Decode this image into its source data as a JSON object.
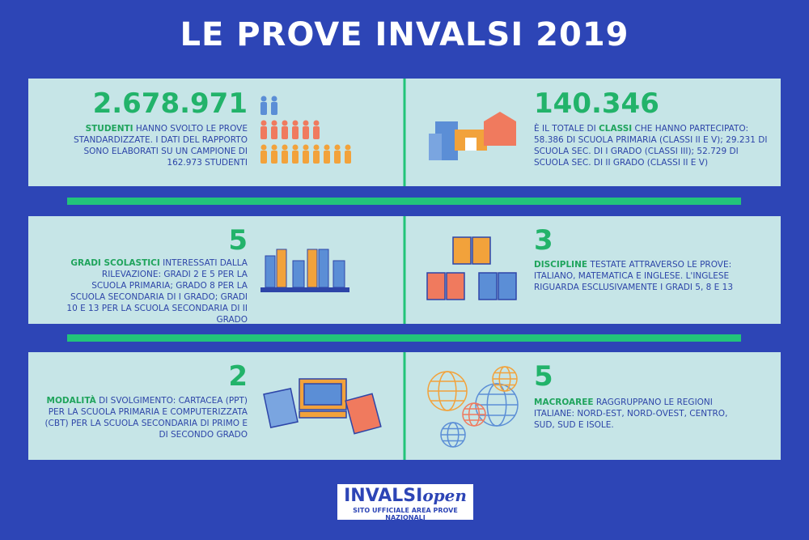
{
  "title": "LE PROVE INVALSI 2019",
  "panels": [
    {
      "number": "2.678.971",
      "highlight": "STUDENTI",
      "text": "HANNO SVOLTO LE PROVE STANDARDIZZATE. I DATI DEL RAPPORTO SONO ELABORATI SU UN CAMPIONE DI 162.973 STUDENTI"
    },
    {
      "number": "140.346",
      "prefix": "È IL TOTALE DI",
      "highlight": "CLASSI",
      "text": "CHE HANNO PARTECIPATO: 58.386 DI SCUOLA PRIMARIA (CLASSI II E V); 29.231 DI SCUOLA SEC. DI I GRADO (CLASSI III); 52.729 DI SCUOLA SEC. DI II GRADO (CLASSI II E V)"
    },
    {
      "number": "5",
      "highlight": "GRADI SCOLASTICI",
      "text": "INTERESSATI DALLA RILEVAZIONE: GRADI 2 E 5 PER LA SCUOLA PRIMARIA; GRADO 8 PER LA SCUOLA SECONDARIA DI I GRADO; GRADI 10 E 13 PER LA SCUOLA SECONDARIA DI II GRADO"
    },
    {
      "number": "3",
      "highlight": "DISCIPLINE",
      "text": "TESTATE ATTRAVERSO LE PROVE: ITALIANO, MATEMATICA E INGLESE. L'INGLESE RIGUARDA ESCLUSIVAMENTE I GRADI 5, 8 E 13"
    },
    {
      "number": "2",
      "highlight": "MODALITÀ",
      "text": "DI SVOLGIMENTO: CARTACEA (PPT) PER LA SCUOLA PRIMARIA E COMPUTERIZZATA (CBT) PER LA SCUOLA SECONDARIA DI PRIMO E DI SECONDO GRADO"
    },
    {
      "number": "5",
      "highlight": "MACROAREE",
      "text": "RAGGRUPPANO LE REGIONI ITALIANE: NORD-EST, NORD-OVEST, CENTRO, SUD, SUD E ISOLE."
    }
  ],
  "logo": {
    "name": "INVALSI",
    "suffix": "open",
    "tagline": "SITO UFFICIALE AREA PROVE NAZIONALI"
  }
}
